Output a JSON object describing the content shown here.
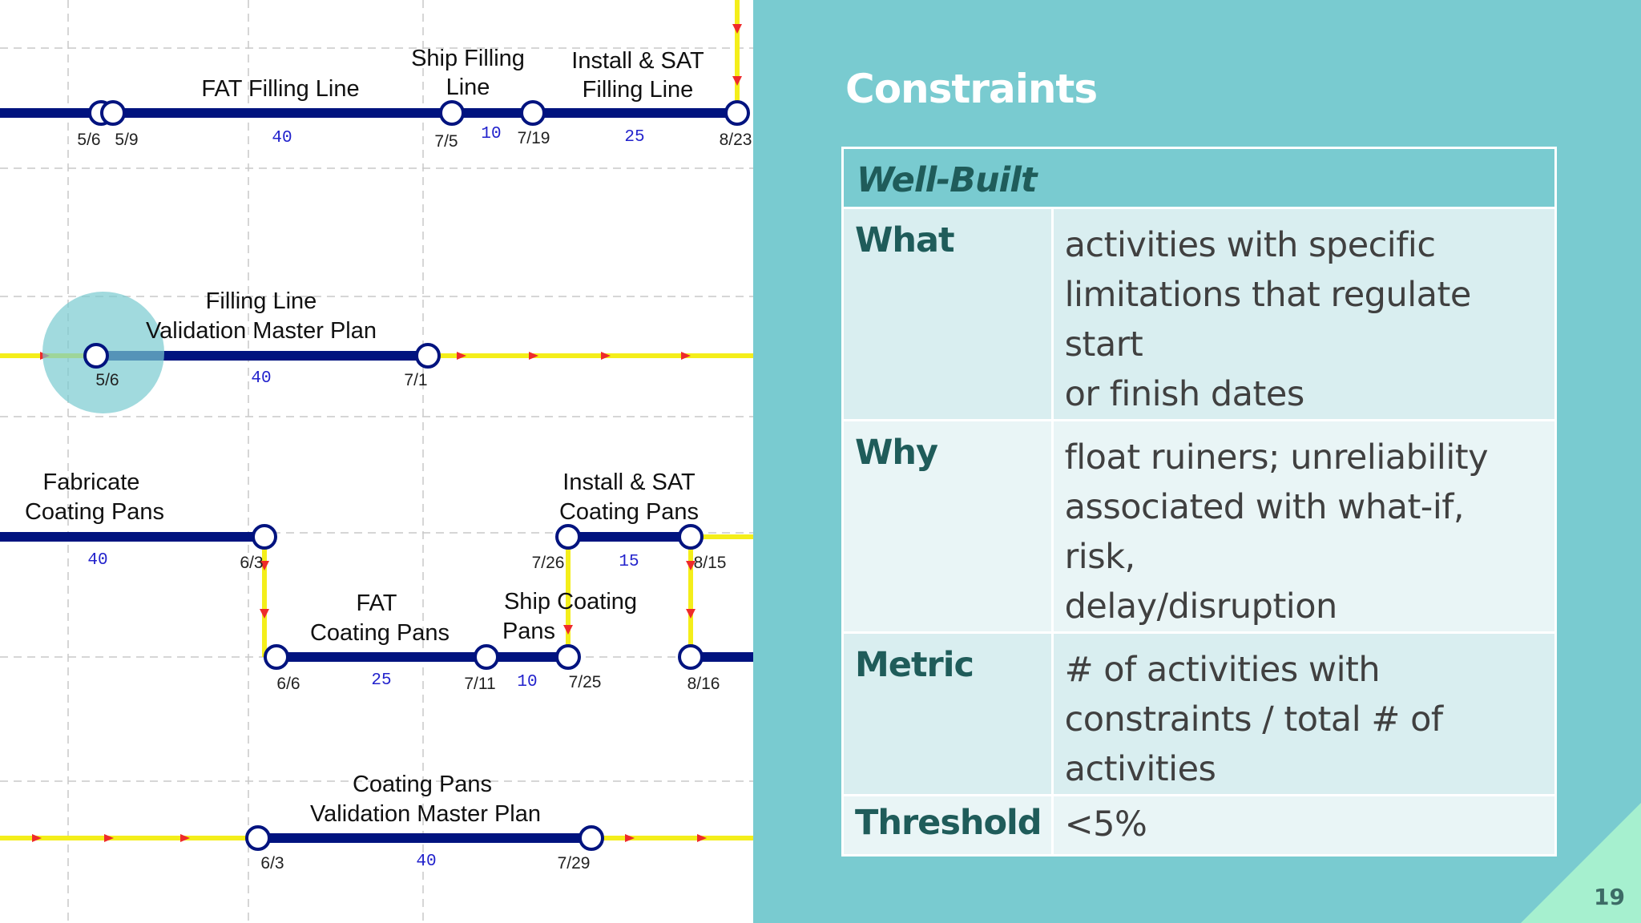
{
  "diagram": {
    "row1": {
      "fat_filling_line": "FAT Filling Line",
      "ship_filling_line_1": "Ship Filling",
      "ship_filling_line_2": "Line",
      "install_sat_filling_1": "Install & SAT",
      "install_sat_filling_2": "Filling Line",
      "dates": [
        "5/6",
        "5/9",
        "7/5",
        "7/19",
        "8/23"
      ],
      "durations": [
        "40",
        "10",
        "25"
      ]
    },
    "row2": {
      "validation_1": "Filling Line",
      "validation_2": "Validation Master Plan",
      "dates": [
        "5/6",
        "7/1"
      ],
      "durations": [
        "40"
      ]
    },
    "row3": {
      "fabricate_1": "Fabricate",
      "fabricate_2": "Coating Pans",
      "install_sat_coating_1": "Install & SAT",
      "install_sat_coating_2": "Coating Pans",
      "fat_coating_1": "FAT",
      "fat_coating_2": "Coating Pans",
      "ship_coating_1": "Ship Coating",
      "ship_coating_2": "Pans",
      "dates": [
        "6/3",
        "7/26",
        "8/15",
        "6/6",
        "7/11",
        "7/25",
        "8/16"
      ],
      "durations": [
        "40",
        "15",
        "25",
        "10"
      ]
    },
    "row4": {
      "coating_validation_1": "Coating Pans",
      "coating_validation_2": "Validation Master Plan",
      "dates": [
        "6/3",
        "7/29"
      ],
      "durations": [
        "40"
      ]
    }
  },
  "slide": {
    "title": "Constraints",
    "table_header": "Well-Built",
    "rows": [
      {
        "key": "What",
        "lines": [
          "activities with specific",
          "limitations that regulate start",
          "or finish dates"
        ]
      },
      {
        "key": "Why",
        "lines": [
          "float ruiners; unreliability",
          "associated with what-if, risk,",
          "delay/disruption"
        ]
      },
      {
        "key": "Metric",
        "lines": [
          "# of activities with",
          "constraints / total # of",
          "activities"
        ]
      },
      {
        "key": "Threshold",
        "lines": [
          "<5%"
        ]
      }
    ],
    "page_number": "19"
  },
  "colors": {
    "panel_background": "#79cbd0",
    "activity_bar": "#00137f",
    "float_line": "#f4ee1a",
    "arrow_marker": "#ee2b2b",
    "heading_text": "#1f5c5a",
    "corner_accent": "#a6f0cf"
  }
}
